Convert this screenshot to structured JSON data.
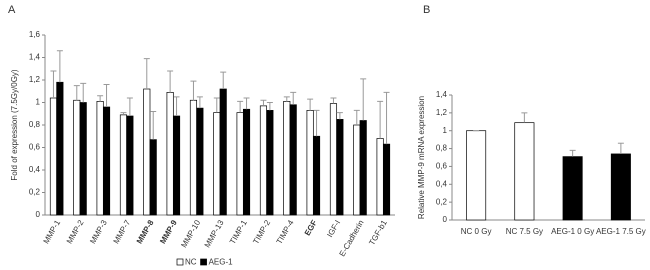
{
  "chart_data": [
    {
      "type": "bar",
      "panel_label": "A",
      "y_label": "Fold of expression (7.5Gy/0Gy)",
      "categories": [
        "MMP-1",
        "MMP-2",
        "MMP-3",
        "MMP-7",
        "MMP-8",
        "MMP-9",
        "MMP-10",
        "MMP-13",
        "TIMP-1",
        "TIMP-2",
        "TIMP-4",
        "EGF",
        "IGF-I",
        "E-Cadherin",
        "TGF-b1"
      ],
      "category_bold": [
        false,
        false,
        false,
        false,
        true,
        true,
        false,
        false,
        false,
        false,
        false,
        true,
        false,
        false,
        false
      ],
      "series": [
        {
          "name": "NC",
          "color": "#ffffff",
          "values": [
            1.04,
            1.02,
            1.01,
            0.89,
            1.12,
            1.09,
            1.02,
            0.91,
            0.91,
            0.97,
            1.01,
            0.93,
            0.99,
            0.8,
            0.68
          ],
          "errors": [
            0.24,
            0.13,
            0.05,
            0.02,
            0.27,
            0.19,
            0.17,
            0.13,
            0.1,
            0.05,
            0.04,
            0.1,
            0.05,
            0.13,
            0.33
          ]
        },
        {
          "name": "AEG-1",
          "color": "#000000",
          "values": [
            1.18,
            1.0,
            0.96,
            0.88,
            0.67,
            0.88,
            0.95,
            1.12,
            0.94,
            0.93,
            0.98,
            0.7,
            0.85,
            0.84,
            0.63
          ],
          "errors": [
            0.28,
            0.17,
            0.2,
            0.16,
            0.25,
            0.17,
            0.1,
            0.15,
            0.1,
            0.07,
            0.11,
            0.23,
            0.06,
            0.37,
            0.46
          ]
        }
      ],
      "ylim": [
        0,
        1.6
      ],
      "yticks": [
        0,
        {
          "value": 0.2,
          "label": "0,2"
        },
        {
          "value": 0.4,
          "label": "0,4"
        },
        {
          "value": 0.6,
          "label": "0,6"
        },
        {
          "value": 0.8,
          "label": "0,8"
        },
        1,
        {
          "value": 1.2,
          "label": "1,2"
        },
        {
          "value": 1.4,
          "label": "1,4"
        },
        {
          "value": 1.6,
          "label": "1,6"
        }
      ],
      "legend": "bottom"
    },
    {
      "type": "bar",
      "panel_label": "B",
      "y_label": "Relative MMP-9 mRNA expression",
      "categories": [
        "NC 0 Gy",
        "NC 7.5 Gy",
        "AEG-1 0 Gy",
        "AEG-1 7.5 Gy"
      ],
      "values": [
        1,
        1.09,
        0.71,
        0.74
      ],
      "errors": [
        0,
        0.11,
        0.07,
        0.12
      ],
      "colors": [
        "#ffffff",
        "#ffffff",
        "#000000",
        "#000000"
      ],
      "ylim": [
        0,
        1.4
      ],
      "yticks": [
        0,
        {
          "value": 0.2,
          "label": "0,2"
        },
        {
          "value": 0.4,
          "label": "0,4"
        },
        {
          "value": 0.6,
          "label": "0,6"
        },
        {
          "value": 0.8,
          "label": "0,8"
        },
        1,
        {
          "value": 1.2,
          "label": "1,2"
        },
        {
          "value": 1.4,
          "label": "1,4"
        }
      ]
    }
  ]
}
